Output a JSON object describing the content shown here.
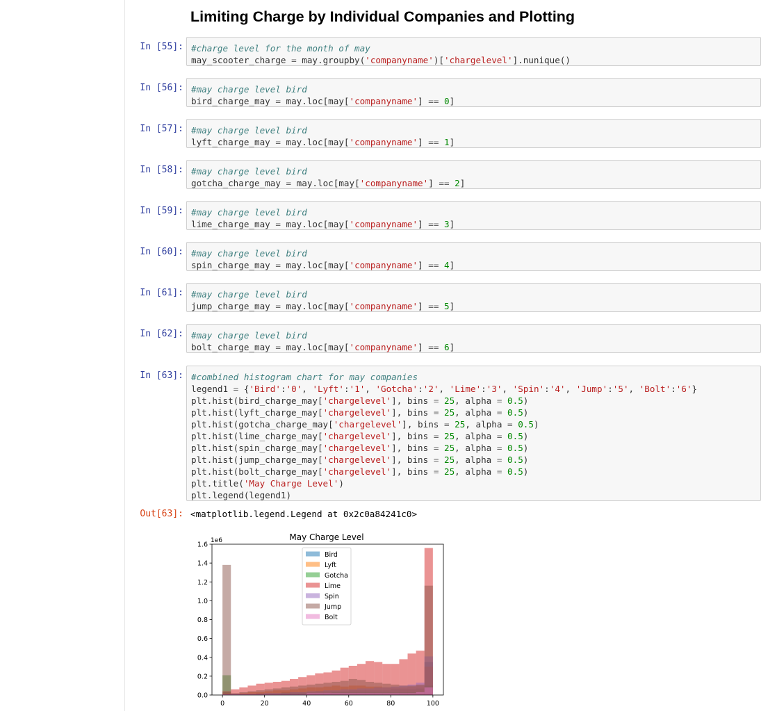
{
  "section_title": "Limiting Charge by Individual Companies and Plotting",
  "cells": [
    {
      "prompt": "In [55]:",
      "lines": [
        [
          {
            "t": "cm",
            "v": "#charge level for the month of may"
          }
        ],
        [
          {
            "t": "n",
            "v": "may_scooter_charge "
          },
          {
            "t": "op",
            "v": "="
          },
          {
            "t": "n",
            "v": " may.groupby("
          },
          {
            "t": "st",
            "v": "'companyname'"
          },
          {
            "t": "n",
            "v": ")["
          },
          {
            "t": "st",
            "v": "'chargelevel'"
          },
          {
            "t": "n",
            "v": "].nunique()"
          }
        ]
      ]
    },
    {
      "prompt": "In [56]:",
      "lines": [
        [
          {
            "t": "cm",
            "v": "#may charge level bird"
          }
        ],
        [
          {
            "t": "n",
            "v": "bird_charge_may "
          },
          {
            "t": "op",
            "v": "="
          },
          {
            "t": "n",
            "v": " may.loc[may["
          },
          {
            "t": "st",
            "v": "'companyname'"
          },
          {
            "t": "n",
            "v": "] "
          },
          {
            "t": "op",
            "v": "=="
          },
          {
            "t": "n",
            "v": " "
          },
          {
            "t": "nu",
            "v": "0"
          },
          {
            "t": "n",
            "v": "]"
          }
        ]
      ]
    },
    {
      "prompt": "In [57]:",
      "lines": [
        [
          {
            "t": "cm",
            "v": "#may charge level bird"
          }
        ],
        [
          {
            "t": "n",
            "v": "lyft_charge_may "
          },
          {
            "t": "op",
            "v": "="
          },
          {
            "t": "n",
            "v": " may.loc[may["
          },
          {
            "t": "st",
            "v": "'companyname'"
          },
          {
            "t": "n",
            "v": "] "
          },
          {
            "t": "op",
            "v": "=="
          },
          {
            "t": "n",
            "v": " "
          },
          {
            "t": "nu",
            "v": "1"
          },
          {
            "t": "n",
            "v": "]"
          }
        ]
      ]
    },
    {
      "prompt": "In [58]:",
      "lines": [
        [
          {
            "t": "cm",
            "v": "#may charge level bird"
          }
        ],
        [
          {
            "t": "n",
            "v": "gotcha_charge_may "
          },
          {
            "t": "op",
            "v": "="
          },
          {
            "t": "n",
            "v": " may.loc[may["
          },
          {
            "t": "st",
            "v": "'companyname'"
          },
          {
            "t": "n",
            "v": "] "
          },
          {
            "t": "op",
            "v": "=="
          },
          {
            "t": "n",
            "v": " "
          },
          {
            "t": "nu",
            "v": "2"
          },
          {
            "t": "n",
            "v": "]"
          }
        ]
      ]
    },
    {
      "prompt": "In [59]:",
      "lines": [
        [
          {
            "t": "cm",
            "v": "#may charge level bird"
          }
        ],
        [
          {
            "t": "n",
            "v": "lime_charge_may "
          },
          {
            "t": "op",
            "v": "="
          },
          {
            "t": "n",
            "v": " may.loc[may["
          },
          {
            "t": "st",
            "v": "'companyname'"
          },
          {
            "t": "n",
            "v": "] "
          },
          {
            "t": "op",
            "v": "=="
          },
          {
            "t": "n",
            "v": " "
          },
          {
            "t": "nu",
            "v": "3"
          },
          {
            "t": "n",
            "v": "]"
          }
        ]
      ]
    },
    {
      "prompt": "In [60]:",
      "lines": [
        [
          {
            "t": "cm",
            "v": "#may charge level bird"
          }
        ],
        [
          {
            "t": "n",
            "v": "spin_charge_may "
          },
          {
            "t": "op",
            "v": "="
          },
          {
            "t": "n",
            "v": " may.loc[may["
          },
          {
            "t": "st",
            "v": "'companyname'"
          },
          {
            "t": "n",
            "v": "] "
          },
          {
            "t": "op",
            "v": "=="
          },
          {
            "t": "n",
            "v": " "
          },
          {
            "t": "nu",
            "v": "4"
          },
          {
            "t": "n",
            "v": "]"
          }
        ]
      ]
    },
    {
      "prompt": "In [61]:",
      "lines": [
        [
          {
            "t": "cm",
            "v": "#may charge level bird"
          }
        ],
        [
          {
            "t": "n",
            "v": "jump_charge_may "
          },
          {
            "t": "op",
            "v": "="
          },
          {
            "t": "n",
            "v": " may.loc[may["
          },
          {
            "t": "st",
            "v": "'companyname'"
          },
          {
            "t": "n",
            "v": "] "
          },
          {
            "t": "op",
            "v": "=="
          },
          {
            "t": "n",
            "v": " "
          },
          {
            "t": "nu",
            "v": "5"
          },
          {
            "t": "n",
            "v": "]"
          }
        ]
      ]
    },
    {
      "prompt": "In [62]:",
      "lines": [
        [
          {
            "t": "cm",
            "v": "#may charge level bird"
          }
        ],
        [
          {
            "t": "n",
            "v": "bolt_charge_may "
          },
          {
            "t": "op",
            "v": "="
          },
          {
            "t": "n",
            "v": " may.loc[may["
          },
          {
            "t": "st",
            "v": "'companyname'"
          },
          {
            "t": "n",
            "v": "] "
          },
          {
            "t": "op",
            "v": "=="
          },
          {
            "t": "n",
            "v": " "
          },
          {
            "t": "nu",
            "v": "6"
          },
          {
            "t": "n",
            "v": "]"
          }
        ]
      ]
    },
    {
      "prompt": "In [63]:",
      "lines": [
        [
          {
            "t": "cm",
            "v": "#combined histogram chart for may companies"
          }
        ],
        [
          {
            "t": "n",
            "v": "legend1 "
          },
          {
            "t": "op",
            "v": "="
          },
          {
            "t": "n",
            "v": " {"
          },
          {
            "t": "st",
            "v": "'Bird'"
          },
          {
            "t": "n",
            "v": ":"
          },
          {
            "t": "st",
            "v": "'0'"
          },
          {
            "t": "n",
            "v": ", "
          },
          {
            "t": "st",
            "v": "'Lyft'"
          },
          {
            "t": "n",
            "v": ":"
          },
          {
            "t": "st",
            "v": "'1'"
          },
          {
            "t": "n",
            "v": ", "
          },
          {
            "t": "st",
            "v": "'Gotcha'"
          },
          {
            "t": "n",
            "v": ":"
          },
          {
            "t": "st",
            "v": "'2'"
          },
          {
            "t": "n",
            "v": ", "
          },
          {
            "t": "st",
            "v": "'Lime'"
          },
          {
            "t": "n",
            "v": ":"
          },
          {
            "t": "st",
            "v": "'3'"
          },
          {
            "t": "n",
            "v": ", "
          },
          {
            "t": "st",
            "v": "'Spin'"
          },
          {
            "t": "n",
            "v": ":"
          },
          {
            "t": "st",
            "v": "'4'"
          },
          {
            "t": "n",
            "v": ", "
          },
          {
            "t": "st",
            "v": "'Jump'"
          },
          {
            "t": "n",
            "v": ":"
          },
          {
            "t": "st",
            "v": "'5'"
          },
          {
            "t": "n",
            "v": ", "
          },
          {
            "t": "st",
            "v": "'Bolt'"
          },
          {
            "t": "n",
            "v": ":"
          },
          {
            "t": "st",
            "v": "'6'"
          },
          {
            "t": "n",
            "v": "}"
          }
        ],
        [
          {
            "t": "n",
            "v": "plt.hist(bird_charge_may["
          },
          {
            "t": "st",
            "v": "'chargelevel'"
          },
          {
            "t": "n",
            "v": "], bins "
          },
          {
            "t": "op",
            "v": "="
          },
          {
            "t": "n",
            "v": " "
          },
          {
            "t": "nu",
            "v": "25"
          },
          {
            "t": "n",
            "v": ", alpha "
          },
          {
            "t": "op",
            "v": "="
          },
          {
            "t": "n",
            "v": " "
          },
          {
            "t": "nu",
            "v": "0.5"
          },
          {
            "t": "n",
            "v": ")"
          }
        ],
        [
          {
            "t": "n",
            "v": "plt.hist(lyft_charge_may["
          },
          {
            "t": "st",
            "v": "'chargelevel'"
          },
          {
            "t": "n",
            "v": "], bins "
          },
          {
            "t": "op",
            "v": "="
          },
          {
            "t": "n",
            "v": " "
          },
          {
            "t": "nu",
            "v": "25"
          },
          {
            "t": "n",
            "v": ", alpha "
          },
          {
            "t": "op",
            "v": "="
          },
          {
            "t": "n",
            "v": " "
          },
          {
            "t": "nu",
            "v": "0.5"
          },
          {
            "t": "n",
            "v": ")"
          }
        ],
        [
          {
            "t": "n",
            "v": "plt.hist(gotcha_charge_may["
          },
          {
            "t": "st",
            "v": "'chargelevel'"
          },
          {
            "t": "n",
            "v": "], bins "
          },
          {
            "t": "op",
            "v": "="
          },
          {
            "t": "n",
            "v": " "
          },
          {
            "t": "nu",
            "v": "25"
          },
          {
            "t": "n",
            "v": ", alpha "
          },
          {
            "t": "op",
            "v": "="
          },
          {
            "t": "n",
            "v": " "
          },
          {
            "t": "nu",
            "v": "0.5"
          },
          {
            "t": "n",
            "v": ")"
          }
        ],
        [
          {
            "t": "n",
            "v": "plt.hist(lime_charge_may["
          },
          {
            "t": "st",
            "v": "'chargelevel'"
          },
          {
            "t": "n",
            "v": "], bins "
          },
          {
            "t": "op",
            "v": "="
          },
          {
            "t": "n",
            "v": " "
          },
          {
            "t": "nu",
            "v": "25"
          },
          {
            "t": "n",
            "v": ", alpha "
          },
          {
            "t": "op",
            "v": "="
          },
          {
            "t": "n",
            "v": " "
          },
          {
            "t": "nu",
            "v": "0.5"
          },
          {
            "t": "n",
            "v": ")"
          }
        ],
        [
          {
            "t": "n",
            "v": "plt.hist(spin_charge_may["
          },
          {
            "t": "st",
            "v": "'chargelevel'"
          },
          {
            "t": "n",
            "v": "], bins "
          },
          {
            "t": "op",
            "v": "="
          },
          {
            "t": "n",
            "v": " "
          },
          {
            "t": "nu",
            "v": "25"
          },
          {
            "t": "n",
            "v": ", alpha "
          },
          {
            "t": "op",
            "v": "="
          },
          {
            "t": "n",
            "v": " "
          },
          {
            "t": "nu",
            "v": "0.5"
          },
          {
            "t": "n",
            "v": ")"
          }
        ],
        [
          {
            "t": "n",
            "v": "plt.hist(jump_charge_may["
          },
          {
            "t": "st",
            "v": "'chargelevel'"
          },
          {
            "t": "n",
            "v": "], bins "
          },
          {
            "t": "op",
            "v": "="
          },
          {
            "t": "n",
            "v": " "
          },
          {
            "t": "nu",
            "v": "25"
          },
          {
            "t": "n",
            "v": ", alpha "
          },
          {
            "t": "op",
            "v": "="
          },
          {
            "t": "n",
            "v": " "
          },
          {
            "t": "nu",
            "v": "0.5"
          },
          {
            "t": "n",
            "v": ")"
          }
        ],
        [
          {
            "t": "n",
            "v": "plt.hist(bolt_charge_may["
          },
          {
            "t": "st",
            "v": "'chargelevel'"
          },
          {
            "t": "n",
            "v": "], bins "
          },
          {
            "t": "op",
            "v": "="
          },
          {
            "t": "n",
            "v": " "
          },
          {
            "t": "nu",
            "v": "25"
          },
          {
            "t": "n",
            "v": ", alpha "
          },
          {
            "t": "op",
            "v": "="
          },
          {
            "t": "n",
            "v": " "
          },
          {
            "t": "nu",
            "v": "0.5"
          },
          {
            "t": "n",
            "v": ")"
          }
        ],
        [
          {
            "t": "n",
            "v": "plt.title("
          },
          {
            "t": "st",
            "v": "'May Charge Level'"
          },
          {
            "t": "n",
            "v": ")"
          }
        ],
        [
          {
            "t": "n",
            "v": "plt.legend(legend1)"
          }
        ]
      ]
    }
  ],
  "output": {
    "prompt": "Out[63]:",
    "text": "<matplotlib.legend.Legend at 0x2c0a84241c0>"
  },
  "chart_data": {
    "type": "bar",
    "title": "May Charge Level",
    "xlabel": "",
    "ylabel": "",
    "y_scale_label": "1e6",
    "xlim": [
      -5,
      105
    ],
    "ylim": [
      0,
      1.6
    ],
    "xticks": [
      "0",
      "20",
      "40",
      "60",
      "80",
      "100"
    ],
    "yticks": [
      "0.0",
      "0.2",
      "0.4",
      "0.6",
      "0.8",
      "1.0",
      "1.2",
      "1.4",
      "1.6"
    ],
    "grid": false,
    "legend_position": "upper-center",
    "bin_edges": [
      0,
      4,
      8,
      12,
      16,
      20,
      24,
      28,
      32,
      36,
      40,
      44,
      48,
      52,
      56,
      60,
      64,
      68,
      72,
      76,
      80,
      84,
      88,
      92,
      96,
      100
    ],
    "series": [
      {
        "name": "Bird",
        "color": "#1f77b4",
        "values": [
          0.03,
          0.01,
          0.01,
          0.01,
          0.02,
          0.02,
          0.02,
          0.03,
          0.03,
          0.03,
          0.03,
          0.04,
          0.04,
          0.04,
          0.04,
          0.05,
          0.05,
          0.05,
          0.05,
          0.05,
          0.06,
          0.06,
          0.06,
          0.07,
          0.35
        ]
      },
      {
        "name": "Lyft",
        "color": "#ff7f0e",
        "values": [
          0.02,
          0.01,
          0.02,
          0.03,
          0.03,
          0.04,
          0.05,
          0.05,
          0.06,
          0.07,
          0.08,
          0.08,
          0.09,
          0.1,
          0.09,
          0.1,
          0.1,
          0.09,
          0.09,
          0.08,
          0.08,
          0.08,
          0.09,
          0.1,
          0.3
        ]
      },
      {
        "name": "Gotcha",
        "color": "#2ca02c",
        "values": [
          0.21,
          0.01,
          0.01,
          0.01,
          0.01,
          0.01,
          0.01,
          0.02,
          0.02,
          0.02,
          0.02,
          0.02,
          0.02,
          0.03,
          0.03,
          0.03,
          0.03,
          0.03,
          0.03,
          0.03,
          0.03,
          0.03,
          0.03,
          0.03,
          0.1
        ]
      },
      {
        "name": "Lime",
        "color": "#d62728",
        "values": [
          0.04,
          0.06,
          0.08,
          0.1,
          0.12,
          0.13,
          0.14,
          0.15,
          0.17,
          0.19,
          0.21,
          0.23,
          0.24,
          0.26,
          0.29,
          0.31,
          0.33,
          0.36,
          0.35,
          0.33,
          0.33,
          0.38,
          0.44,
          0.47,
          1.56
        ]
      },
      {
        "name": "Spin",
        "color": "#9467bd",
        "values": [
          0.01,
          0.01,
          0.01,
          0.01,
          0.01,
          0.02,
          0.02,
          0.02,
          0.03,
          0.03,
          0.04,
          0.04,
          0.05,
          0.05,
          0.06,
          0.06,
          0.07,
          0.07,
          0.08,
          0.08,
          0.09,
          0.1,
          0.11,
          0.13,
          0.41
        ]
      },
      {
        "name": "Jump",
        "color": "#8c564b",
        "values": [
          1.38,
          0.02,
          0.03,
          0.04,
          0.05,
          0.06,
          0.07,
          0.08,
          0.09,
          0.1,
          0.11,
          0.12,
          0.13,
          0.14,
          0.15,
          0.17,
          0.16,
          0.14,
          0.13,
          0.12,
          0.11,
          0.1,
          0.1,
          0.11,
          1.16
        ]
      },
      {
        "name": "Bolt",
        "color": "#e377c2",
        "values": [
          0.01,
          0.01,
          0.01,
          0.01,
          0.01,
          0.01,
          0.01,
          0.01,
          0.01,
          0.01,
          0.02,
          0.02,
          0.02,
          0.02,
          0.02,
          0.02,
          0.02,
          0.02,
          0.02,
          0.02,
          0.02,
          0.02,
          0.02,
          0.03,
          0.08
        ]
      }
    ]
  }
}
